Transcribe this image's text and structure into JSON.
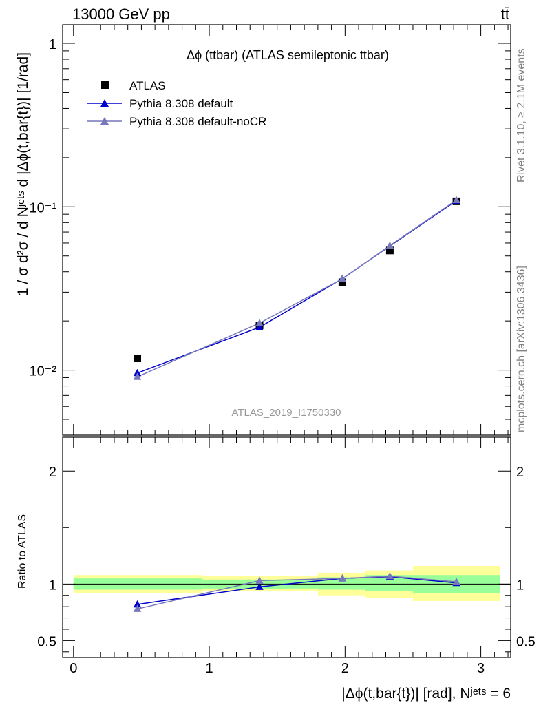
{
  "header": {
    "left": "13000 GeV pp",
    "right": "tt̄"
  },
  "side_labels": {
    "rivet": "Rivet 3.1.10, ≥ 2.1M events",
    "site": "mcplots.cern.ch [arXiv:1306.3436]"
  },
  "colors": {
    "atlas": "#000000",
    "default": "#0000cc",
    "noCR": "#7777bb",
    "band_inner": "#99ff99",
    "band_outer": "#ffff99",
    "watermark": "#999999"
  },
  "chart_data": [
    {
      "type": "scatter",
      "panel": "main",
      "title": "Δϕ (ttbar) (ATLAS semileptonic ttbar)",
      "watermark": "ATLAS_2019_I1750330",
      "ylabel": "1 / σ d²σ / d Nʲᵉᵗˢ d |Δϕ(t,bar{t})| [1/rad]",
      "yscale": "log",
      "ylim": [
        0.004,
        1.3
      ],
      "xlim": [
        -0.08,
        3.22
      ],
      "y_tick_labels": [
        "10⁻²",
        "10⁻¹",
        "1"
      ],
      "legend_position": "top-left",
      "series": [
        {
          "name": "ATLAS",
          "marker": "square",
          "x": [
            0.47,
            1.37,
            1.98,
            2.33,
            2.82
          ],
          "y": [
            0.0118,
            0.0188,
            0.0345,
            0.054,
            0.108
          ]
        },
        {
          "name": "Pythia 8.308 default",
          "marker": "triangle",
          "x": [
            0.47,
            1.37,
            1.98,
            2.33,
            2.82
          ],
          "y": [
            0.0096,
            0.0183,
            0.0363,
            0.0575,
            0.109
          ]
        },
        {
          "name": "Pythia 8.308 default-noCR",
          "marker": "triangle",
          "x": [
            0.47,
            1.37,
            1.98,
            2.33,
            2.82
          ],
          "y": [
            0.0091,
            0.0194,
            0.0362,
            0.0578,
            0.11
          ]
        }
      ]
    },
    {
      "type": "line",
      "panel": "ratio",
      "ylabel": "Ratio to ATLAS",
      "xlabel": "|Δϕ(t,bar{t})| [rad], Nʲᵉᵗˢ = 6",
      "ylim": [
        0.35,
        2.3
      ],
      "xlim": [
        -0.08,
        3.22
      ],
      "x_ticks": [
        0,
        1,
        2,
        3
      ],
      "x_tick_labels": [
        "0",
        "1",
        "2",
        "3"
      ],
      "y_ticks": [
        0.5,
        1,
        2
      ],
      "y_tick_labels": [
        "0.5",
        "1",
        "2"
      ],
      "bands": [
        {
          "x0": 0.0,
          "x1": 0.95,
          "inner": [
            0.95,
            1.05
          ],
          "outer": [
            0.92,
            1.08
          ]
        },
        {
          "x0": 0.95,
          "x1": 1.8,
          "inner": [
            0.96,
            1.04
          ],
          "outer": [
            0.94,
            1.07
          ]
        },
        {
          "x0": 1.8,
          "x1": 2.15,
          "inner": [
            0.95,
            1.06
          ],
          "outer": [
            0.9,
            1.1
          ]
        },
        {
          "x0": 2.15,
          "x1": 2.5,
          "inner": [
            0.94,
            1.08
          ],
          "outer": [
            0.88,
            1.12
          ]
        },
        {
          "x0": 2.5,
          "x1": 3.14,
          "inner": [
            0.92,
            1.08
          ],
          "outer": [
            0.85,
            1.16
          ]
        }
      ],
      "series": [
        {
          "name": "Pythia 8.308 default",
          "x": [
            0.47,
            1.37,
            1.98,
            2.33,
            2.82
          ],
          "y": [
            0.82,
            0.975,
            1.05,
            1.065,
            1.01
          ]
        },
        {
          "name": "Pythia 8.308 default-noCR",
          "x": [
            0.47,
            1.37,
            1.98,
            2.33,
            2.82
          ],
          "y": [
            0.78,
            1.03,
            1.05,
            1.07,
            1.02
          ]
        }
      ]
    }
  ]
}
